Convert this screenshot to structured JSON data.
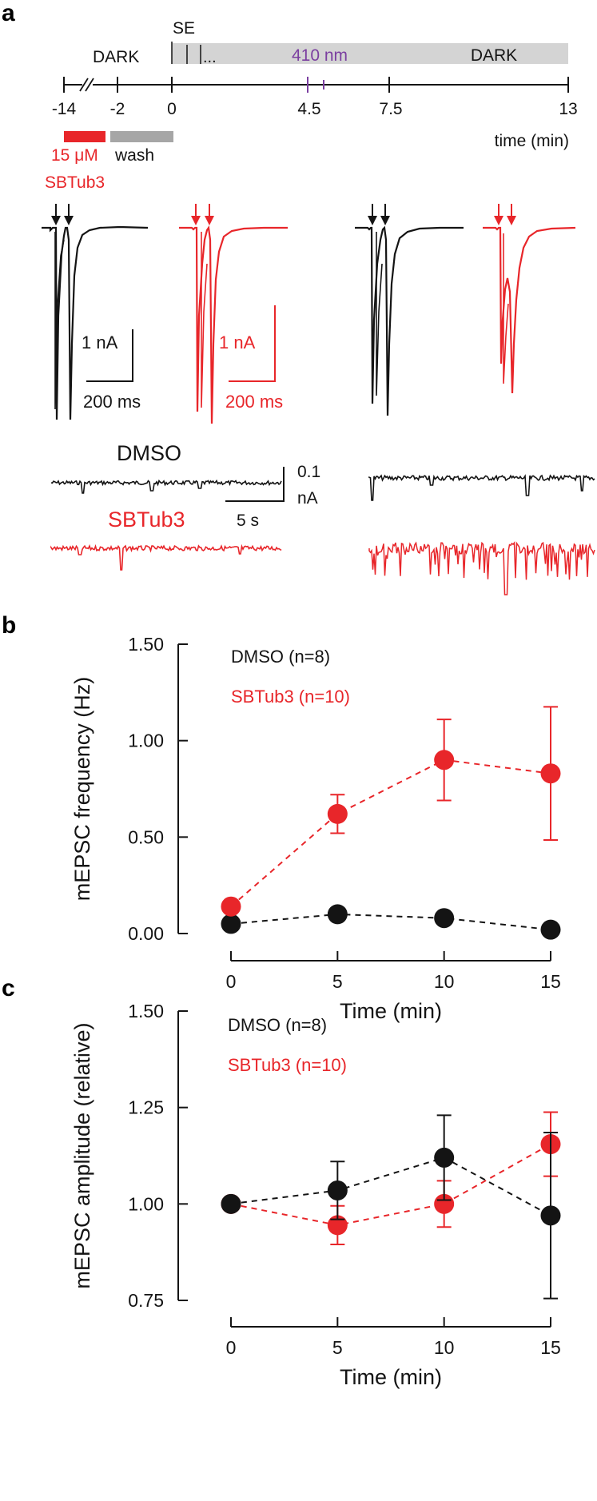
{
  "colors": {
    "black": "#141414",
    "red": "#e8262a",
    "gray": "#d4d4d4",
    "purple": "#7b3fa0",
    "wash_gray": "#a6a6a6"
  },
  "panel_a": {
    "label": "a",
    "timeline": {
      "dark_left": "DARK",
      "se": "SE",
      "ellipsis": "...",
      "light": "410 nm",
      "dark_right": "DARK",
      "ticks": [
        "-14",
        "-2",
        "0",
        "4.5",
        "7.5",
        "13"
      ],
      "time_label": "time (min)",
      "drug_conc": "15 μM",
      "wash": "wash",
      "drug": "SBTub3"
    },
    "scalebars": {
      "black_current": "1 nA",
      "black_time": "200 ms",
      "red_current": "1 nA",
      "red_time": "200 ms",
      "mepsc_current_1": "0.1",
      "mepsc_current_2": "nA",
      "mepsc_time": "5 s"
    },
    "trace_labels": {
      "dmso": "DMSO",
      "sbtub3": "SBTub3"
    }
  },
  "panel_b": {
    "label": "b"
  },
  "panel_c": {
    "label": "c"
  },
  "chart_data": [
    {
      "type": "line",
      "title": "",
      "xlabel": "Time (min)",
      "ylabel": "mEPSC frequency (Hz)",
      "x": [
        0,
        5,
        10,
        15
      ],
      "xticks": [
        "0",
        "5",
        "10",
        "15"
      ],
      "yticks": [
        "0.00",
        "0.50",
        "1.00",
        "1.50"
      ],
      "ylim": [
        0,
        1.5
      ],
      "series": [
        {
          "name": "DMSO (n=8)",
          "color": "#141414",
          "values": [
            0.05,
            0.1,
            0.08,
            0.02
          ],
          "errors": [
            0,
            0,
            0,
            0
          ]
        },
        {
          "name": "SBTub3 (n=10)",
          "color": "#e8262a",
          "values": [
            0.14,
            0.62,
            0.9,
            0.83
          ],
          "errors": [
            0,
            0.1,
            0.21,
            0.345
          ]
        }
      ],
      "legend": "top-left"
    },
    {
      "type": "line",
      "title": "",
      "xlabel": "Time (min)",
      "ylabel": "mEPSC amplitude (relative)",
      "x": [
        0,
        5,
        10,
        15
      ],
      "xticks": [
        "0",
        "5",
        "10",
        "15"
      ],
      "yticks": [
        "0.75",
        "1.00",
        "1.25",
        "1.50"
      ],
      "ylim": [
        0.75,
        1.5
      ],
      "series": [
        {
          "name": "DMSO (n=8)",
          "color": "#141414",
          "values": [
            1.0,
            1.035,
            1.12,
            0.97
          ],
          "errors": [
            0,
            0.075,
            0.11,
            0.215
          ]
        },
        {
          "name": "SBTub3 (n=10)",
          "color": "#e8262a",
          "values": [
            1.0,
            0.945,
            1.0,
            1.155
          ],
          "errors": [
            0,
            0.05,
            0.06,
            0.083
          ]
        }
      ],
      "legend": "top-left"
    }
  ]
}
